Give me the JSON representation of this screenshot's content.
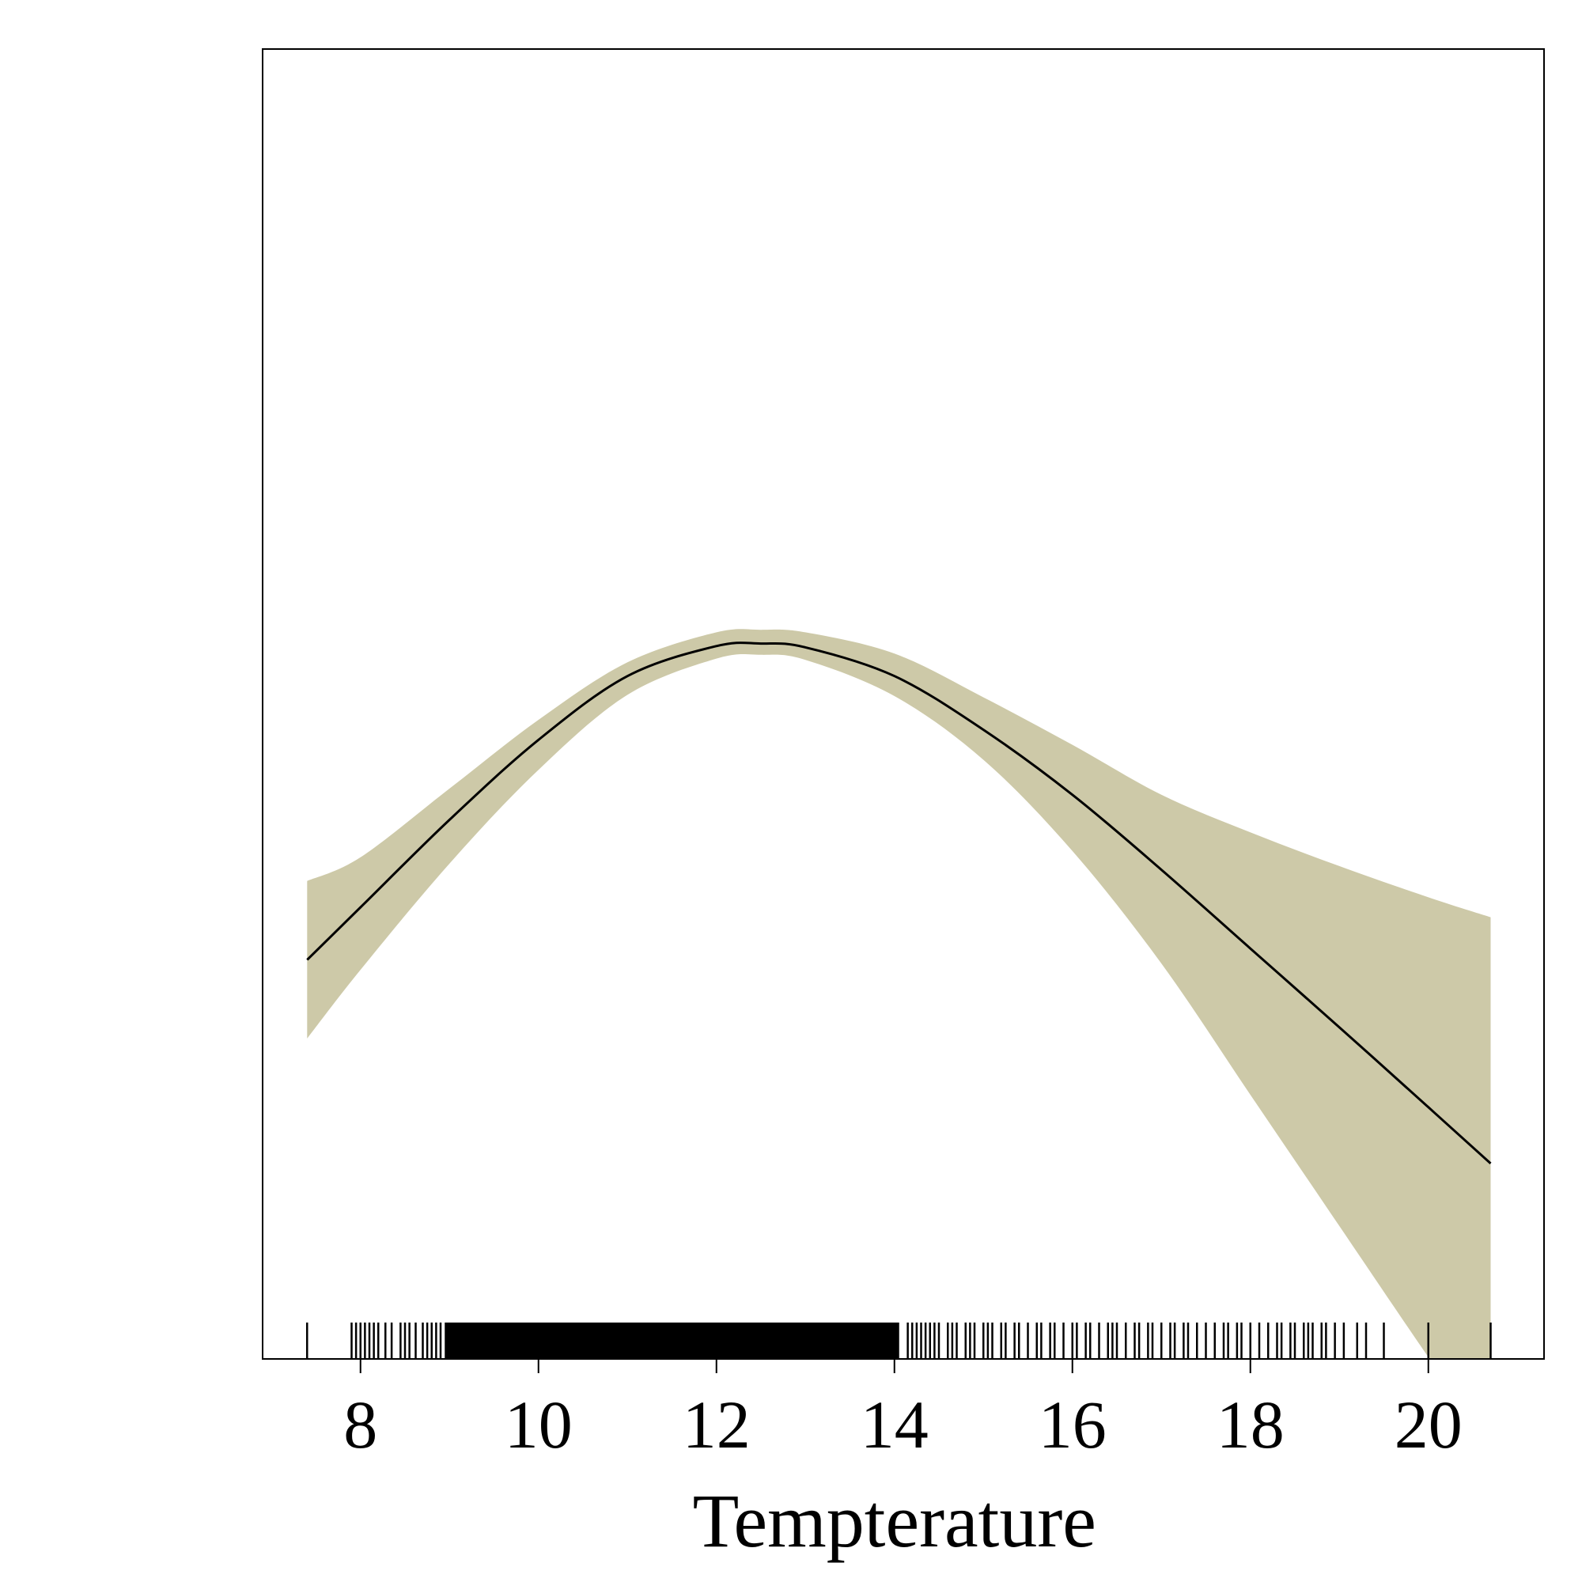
{
  "chart_data": {
    "type": "line",
    "title": "",
    "xlabel": "Tempteraturе",
    "ylabel": "",
    "xlim": [
      6.9,
      21.3
    ],
    "ylim": [
      0,
      1
    ],
    "xticks": [
      8,
      10,
      12,
      14,
      16,
      18,
      20
    ],
    "grid": false,
    "legend": "none",
    "colors": {
      "band": "#cdc9a8",
      "line": "#000000",
      "frame": "#000000"
    },
    "series": [
      {
        "x": [
          7.4,
          8.0,
          9.0,
          10.0,
          11.0,
          12.0,
          12.5,
          13.0,
          14.0,
          15.0,
          16.0,
          17.0,
          18.0,
          19.0,
          20.0,
          20.7
        ],
        "y": [
          0.308,
          0.35,
          0.42,
          0.484,
          0.535,
          0.559,
          0.561,
          0.558,
          0.535,
          0.492,
          0.44,
          0.38,
          0.317,
          0.254,
          0.19,
          0.145
        ],
        "lower": [
          0.245,
          0.3,
          0.385,
          0.46,
          0.52,
          0.549,
          0.552,
          0.548,
          0.519,
          0.468,
          0.395,
          0.305,
          0.2,
          0.095,
          -0.01,
          -0.081
        ],
        "upper": [
          0.371,
          0.39,
          0.445,
          0.5,
          0.546,
          0.57,
          0.572,
          0.57,
          0.553,
          0.518,
          0.48,
          0.44,
          0.41,
          0.383,
          0.358,
          0.342
        ]
      }
    ],
    "rug": [
      7.4,
      7.9,
      7.95,
      8.0,
      8.05,
      8.1,
      8.15,
      8.2,
      8.28,
      8.35,
      8.45,
      8.5,
      8.55,
      8.62,
      8.7,
      8.75,
      8.8,
      8.85,
      8.9,
      9.0,
      9.1,
      9.2,
      9.3,
      9.4,
      9.5,
      9.6,
      9.7,
      9.8,
      9.9,
      10.0,
      10.1,
      10.2,
      10.3,
      10.4,
      10.5,
      10.6,
      10.7,
      10.8,
      10.9,
      11.0,
      11.1,
      11.2,
      11.3,
      11.4,
      11.5,
      11.6,
      11.7,
      11.8,
      11.9,
      12.0,
      12.1,
      12.2,
      12.3,
      12.4,
      12.5,
      12.6,
      12.7,
      12.8,
      12.9,
      13.0,
      13.1,
      13.2,
      13.3,
      13.4,
      13.5,
      13.6,
      13.7,
      13.8,
      13.9,
      14.0,
      14.15,
      14.2,
      14.25,
      14.3,
      14.35,
      14.4,
      14.45,
      14.5,
      14.6,
      14.65,
      14.7,
      14.8,
      14.85,
      14.9,
      15.0,
      15.05,
      15.1,
      15.2,
      15.25,
      15.35,
      15.4,
      15.5,
      15.6,
      15.65,
      15.75,
      15.8,
      15.9,
      16.0,
      16.05,
      16.15,
      16.2,
      16.3,
      16.4,
      16.45,
      16.5,
      16.6,
      16.7,
      16.75,
      16.85,
      16.9,
      17.0,
      17.1,
      17.15,
      17.25,
      17.3,
      17.4,
      17.5,
      17.6,
      17.7,
      17.75,
      17.85,
      17.9,
      18.0,
      18.1,
      18.2,
      18.3,
      18.35,
      18.45,
      18.5,
      18.6,
      18.65,
      18.7,
      18.8,
      18.85,
      18.95,
      19.05,
      19.2,
      19.3,
      19.5,
      20.0,
      20.7
    ]
  }
}
